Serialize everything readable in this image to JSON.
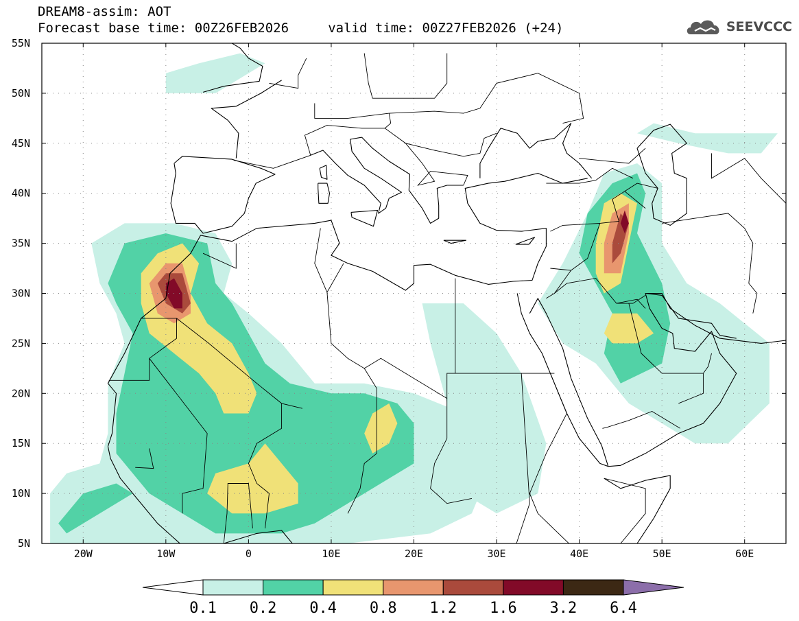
{
  "header": {
    "line1": "DREAM8-assim: AOT",
    "line2": "Forecast base time: 00Z26FEB2026     valid time: 00Z27FEB2026 (+24)",
    "logo_text": "SEEVCCC"
  },
  "map": {
    "lon_min": -25,
    "lon_max": 65,
    "lat_min": 5,
    "lat_max": 55,
    "lat_ticks": [
      {
        "v": 55,
        "label": "55N"
      },
      {
        "v": 50,
        "label": "50N"
      },
      {
        "v": 45,
        "label": "45N"
      },
      {
        "v": 40,
        "label": "40N"
      },
      {
        "v": 35,
        "label": "35N"
      },
      {
        "v": 30,
        "label": "30N"
      },
      {
        "v": 25,
        "label": "25N"
      },
      {
        "v": 20,
        "label": "20N"
      },
      {
        "v": 15,
        "label": "15N"
      },
      {
        "v": 10,
        "label": "10N"
      },
      {
        "v": 5,
        "label": "5N"
      }
    ],
    "lon_ticks": [
      {
        "v": -20,
        "label": "20W"
      },
      {
        "v": -10,
        "label": "10W"
      },
      {
        "v": 0,
        "label": "0"
      },
      {
        "v": 10,
        "label": "10E"
      },
      {
        "v": 20,
        "label": "20E"
      },
      {
        "v": 30,
        "label": "30E"
      },
      {
        "v": 40,
        "label": "40E"
      },
      {
        "v": 50,
        "label": "50E"
      },
      {
        "v": 60,
        "label": "60E"
      }
    ]
  },
  "colorbar": {
    "labels": [
      "0.1",
      "0.2",
      "0.4",
      "0.8",
      "1.2",
      "1.6",
      "3.2",
      "6.4"
    ],
    "colors": [
      "#ffffff",
      "#c8f0e6",
      "#52d2a6",
      "#f0e178",
      "#e8966e",
      "#aa4a3c",
      "#820a28",
      "#3c2814",
      "#8c6eaa"
    ]
  }
}
